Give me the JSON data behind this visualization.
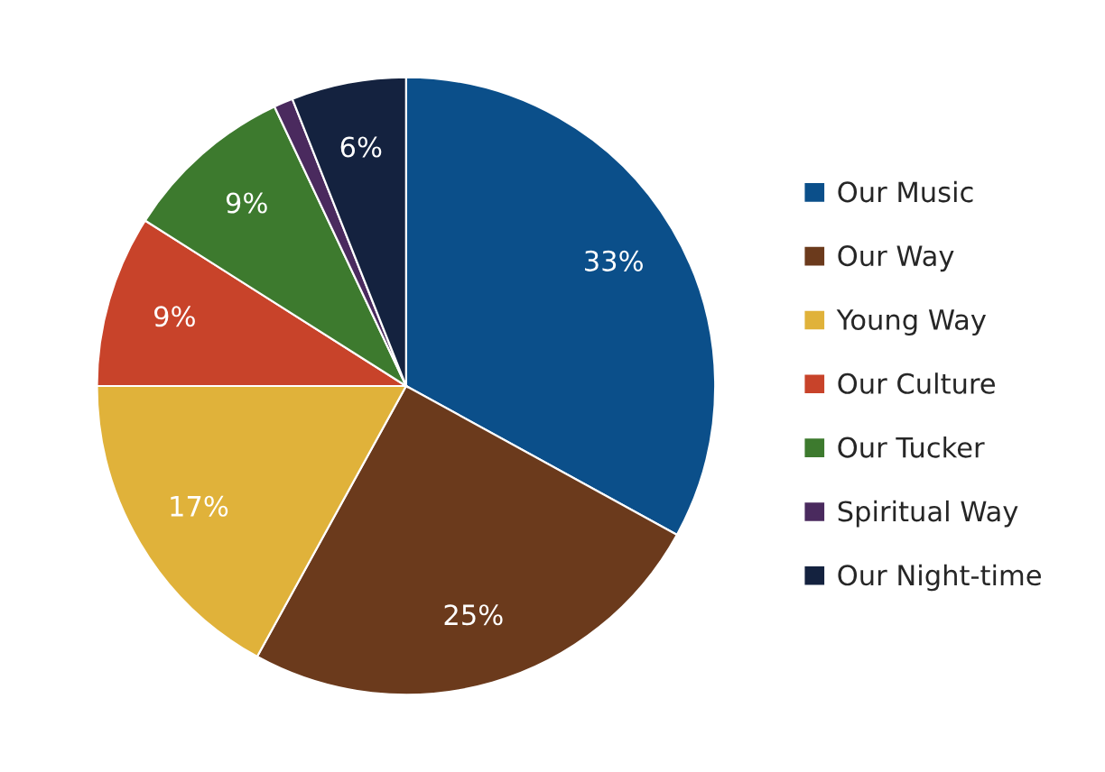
{
  "chart_data": {
    "type": "pie",
    "categories": [
      "Our Music",
      "Our Way",
      "Young Way",
      "Our Culture",
      "Our Tucker",
      "Spiritual Way",
      "Our Night-time"
    ],
    "values": [
      33,
      25,
      17,
      9,
      9,
      1,
      6
    ],
    "value_labels": [
      "33%",
      "25%",
      "17%",
      "9%",
      "9%",
      null,
      "6%"
    ],
    "colors": [
      "#0b4f8a",
      "#6b3a1c",
      "#e0b23a",
      "#c8432a",
      "#3d7a2e",
      "#4a2a5e",
      "#14223f"
    ],
    "legend": "right"
  }
}
